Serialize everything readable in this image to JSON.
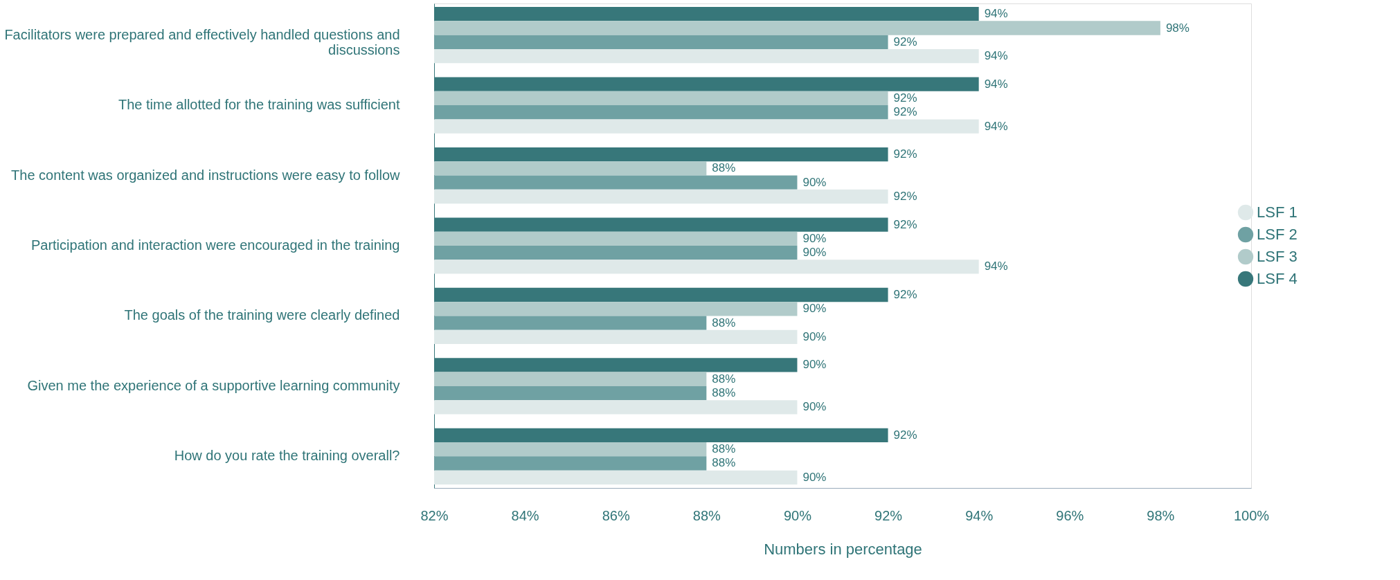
{
  "chart_data": {
    "type": "bar",
    "orientation": "horizontal",
    "xlabel": "Numbers in percentage",
    "categories": [
      "Facilitators were prepared and effectively handled questions and discussions",
      "The time allotted for the training was sufficient",
      "The content was organized and instructions were easy to follow",
      "Participation and interaction were encouraged in the training",
      "The goals of the training were clearly defined",
      "Given me the experience of a supportive learning community",
      "How do you rate the training overall?"
    ],
    "series": [
      {
        "name": "LSF 4",
        "color": "#37777a",
        "values": [
          94,
          94,
          92,
          92,
          92,
          90,
          92
        ],
        "value_labels": [
          "94%",
          "94%",
          "92%",
          "92%",
          "92%",
          "90%",
          "92%"
        ]
      },
      {
        "name": "LSF 3",
        "color": "#b1cbca",
        "values": [
          98,
          92,
          88,
          90,
          90,
          88,
          88
        ],
        "value_labels": [
          "98%",
          "92%",
          "88%",
          "90%",
          "90%",
          "88%",
          "88%"
        ]
      },
      {
        "name": "LSF 2",
        "color": "#6fa1a3",
        "values": [
          92,
          92,
          90,
          90,
          88,
          88,
          88
        ],
        "value_labels": [
          "92%",
          "92%",
          "90%",
          "90%",
          "88%",
          "88%",
          "88%"
        ]
      },
      {
        "name": "LSF 1",
        "color": "#dfe9e9",
        "values": [
          94,
          94,
          92,
          94,
          90,
          90,
          90
        ],
        "value_labels": [
          "94%",
          "94%",
          "92%",
          "94%",
          "90%",
          "90%",
          "90%"
        ]
      }
    ],
    "xlim": [
      82,
      100
    ],
    "xticks": [
      {
        "value": 82,
        "label": "82%"
      },
      {
        "value": 84,
        "label": "84%"
      },
      {
        "value": 86,
        "label": "86%"
      },
      {
        "value": 88,
        "label": "88%"
      },
      {
        "value": 90,
        "label": "90%"
      },
      {
        "value": 92,
        "label": "92%"
      },
      {
        "value": 94,
        "label": "94%"
      },
      {
        "value": 96,
        "label": "96%"
      },
      {
        "value": 98,
        "label": "98%"
      },
      {
        "value": 100,
        "label": "100%"
      }
    ],
    "grid": false,
    "legend": "right"
  }
}
